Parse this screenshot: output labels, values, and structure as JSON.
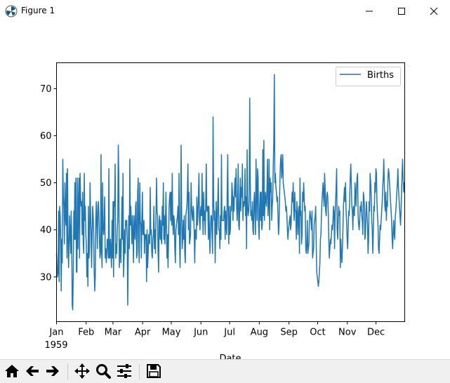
{
  "window": {
    "title": "Figure 1"
  },
  "icons": {
    "app": "matplotlib-icon",
    "minimize": "minimize-icon",
    "maximize": "maximize-icon",
    "close": "close-icon",
    "toolbar": [
      "home-icon",
      "back-arrow-icon",
      "forward-arrow-icon",
      "pan-icon",
      "zoom-icon",
      "subplots-config-icon",
      "save-icon"
    ]
  },
  "colors": {
    "line": "#1f77b4"
  },
  "chart_data": {
    "type": "line",
    "xlabel": "Date",
    "ylabel": "",
    "title": "",
    "x_start": "1959-01-01",
    "x_end": "1959-12-31",
    "xlim": [
      "1959-01-01",
      "1959-12-31"
    ],
    "ylim": [
      20.5,
      75.5
    ],
    "yticks": [
      30,
      40,
      50,
      60,
      70
    ],
    "xtick_labels": [
      "Jan",
      "Feb",
      "Mar",
      "Apr",
      "May",
      "Jun",
      "Jul",
      "Aug",
      "Sep",
      "Oct",
      "Nov",
      "Dec"
    ],
    "xtick_dates": [
      "1959-01-01",
      "1959-02-01",
      "1959-03-01",
      "1959-04-01",
      "1959-05-01",
      "1959-06-01",
      "1959-07-01",
      "1959-08-01",
      "1959-09-01",
      "1959-10-01",
      "1959-11-01",
      "1959-12-01"
    ],
    "xtick_year_label": "1959",
    "legend": {
      "position": "upper right",
      "entries": [
        "Births"
      ]
    },
    "grid": false,
    "series": [
      {
        "name": "Births",
        "values": [
          35,
          32,
          30,
          31,
          44,
          29,
          45,
          43,
          38,
          27,
          38,
          33,
          55,
          47,
          45,
          37,
          50,
          43,
          41,
          52,
          34,
          53,
          39,
          32,
          37,
          43,
          39,
          35,
          44,
          38,
          24,
          23,
          31,
          44,
          38,
          50,
          38,
          51,
          31,
          31,
          51,
          36,
          45,
          51,
          34,
          52,
          47,
          45,
          46,
          39,
          48,
          37,
          35,
          52,
          42,
          45,
          39,
          37,
          30,
          35,
          28,
          45,
          34,
          36,
          50,
          44,
          39,
          32,
          39,
          45,
          43,
          39,
          31,
          27,
          30,
          42,
          46,
          41,
          36,
          45,
          46,
          43,
          38,
          34,
          35,
          56,
          36,
          32,
          50,
          41,
          39,
          41,
          47,
          34,
          36,
          33,
          35,
          38,
          38,
          34,
          53,
          34,
          34,
          38,
          35,
          32,
          42,
          34,
          46,
          30,
          46,
          45,
          54,
          34,
          37,
          35,
          40,
          42,
          58,
          51,
          32,
          35,
          38,
          33,
          39,
          47,
          38,
          52,
          30,
          34,
          40,
          35,
          42,
          41,
          42,
          38,
          24,
          34,
          43,
          36,
          55,
          41,
          45,
          41,
          37,
          43,
          39,
          33,
          43,
          40,
          38,
          45,
          46,
          34,
          35,
          48,
          51,
          36,
          33,
          50,
          42,
          41,
          34,
          42,
          48,
          39,
          39,
          42,
          35,
          39,
          38,
          39,
          29,
          40,
          32,
          35,
          39,
          38,
          37,
          49,
          39,
          40,
          35,
          34,
          38,
          39,
          45,
          36,
          40,
          35,
          43,
          51,
          44,
          43,
          35,
          31,
          42,
          43,
          38,
          42,
          38,
          37,
          45,
          41,
          50,
          38,
          43,
          37,
          41,
          48,
          40,
          34,
          39,
          32,
          38,
          45,
          47,
          48,
          42,
          48,
          41,
          52,
          42,
          39,
          43,
          42,
          36,
          33,
          40,
          41,
          42,
          43,
          45,
          39,
          52,
          37,
          32,
          42,
          58,
          43,
          36,
          38,
          42,
          38,
          43,
          35,
          33,
          43,
          44,
          45,
          48,
          54,
          40,
          48,
          37,
          38,
          39,
          50,
          45,
          43,
          42,
          45,
          44,
          39,
          33,
          40,
          40,
          38,
          47,
          41,
          43,
          47,
          52,
          42,
          40,
          44,
          45,
          43,
          52,
          43,
          39,
          48,
          42,
          44,
          39,
          46,
          54,
          44,
          44,
          45,
          38,
          45,
          40,
          35,
          40,
          43,
          43,
          39,
          35,
          64,
          47,
          42,
          44,
          33,
          40,
          46,
          39,
          42,
          46,
          51,
          40,
          40,
          36,
          43,
          38,
          56,
          42,
          42,
          42,
          42,
          44,
          45,
          38,
          44,
          41,
          39,
          48,
          56,
          43,
          37,
          45,
          39,
          40,
          45,
          44,
          50,
          48,
          42,
          47,
          44,
          49,
          51,
          47,
          53,
          45,
          42,
          45,
          54,
          41,
          40,
          46,
          51,
          44,
          49,
          47,
          54,
          42,
          46,
          45,
          46,
          53,
          43,
          47,
          36,
          57,
          45,
          43,
          44,
          47,
          68,
          51,
          43,
          44,
          42,
          46,
          40,
          39,
          46,
          48,
          43,
          39,
          55,
          48,
          42,
          53,
          51,
          41,
          38,
          45,
          48,
          42,
          48,
          40,
          41,
          57,
          43,
          59,
          42,
          45,
          48,
          46,
          45,
          49,
          55,
          43,
          46,
          55,
          40,
          51,
          48,
          50,
          42,
          45,
          47,
          54,
          59,
          73,
          50,
          52,
          49,
          48,
          46,
          47,
          43,
          39,
          41,
          47,
          52,
          55,
          56,
          51,
          53,
          56,
          50,
          49,
          48,
          47,
          46,
          44,
          45,
          43,
          40,
          38,
          40,
          41,
          42,
          43,
          40,
          41,
          45,
          48,
          46,
          50,
          44,
          42,
          48,
          44,
          44,
          38,
          46,
          43,
          39,
          44,
          45,
          35,
          51,
          43,
          44,
          37,
          39,
          48,
          46,
          50,
          47,
          44,
          45,
          36,
          35,
          37,
          42,
          35,
          36,
          37,
          42,
          44,
          43,
          42,
          40,
          44,
          34,
          35,
          36,
          41,
          42,
          43,
          45,
          37,
          31,
          30,
          29,
          28,
          29,
          31,
          33,
          38,
          39,
          43,
          46,
          48,
          50,
          47,
          45,
          52,
          49,
          44,
          43,
          47,
          48,
          47,
          44,
          38,
          34,
          36,
          38,
          37,
          39,
          41,
          40,
          42,
          45,
          44,
          36,
          43,
          46,
          49,
          53,
          40,
          38,
          42,
          45,
          43,
          44,
          32,
          38,
          35,
          33,
          36,
          40,
          45,
          47,
          49,
          46,
          50,
          44,
          42,
          38,
          36,
          40,
          44,
          43,
          47,
          51,
          54,
          50,
          45,
          44,
          40,
          45,
          44,
          43,
          50,
          48,
          45,
          49,
          51,
          52,
          43,
          41,
          40,
          42,
          45,
          44,
          46,
          43,
          42,
          39,
          48,
          47,
          45,
          38,
          39,
          44,
          46,
          43,
          41,
          35,
          38,
          46,
          44,
          52,
          50,
          47,
          42,
          40,
          35,
          39,
          45,
          44,
          50,
          48,
          53,
          52,
          46,
          43,
          41,
          36,
          35,
          38,
          41,
          40,
          42,
          44,
          46,
          49,
          51,
          55,
          50,
          45,
          44,
          48,
          42,
          46,
          45,
          51,
          53,
          52,
          50,
          48,
          46,
          44,
          42,
          38,
          36,
          40,
          42,
          39,
          38,
          43,
          44,
          46,
          48,
          50,
          53,
          49,
          47,
          45,
          43,
          41,
          44,
          48,
          52,
          55,
          51,
          48,
          50,
          49
        ]
      }
    ]
  }
}
